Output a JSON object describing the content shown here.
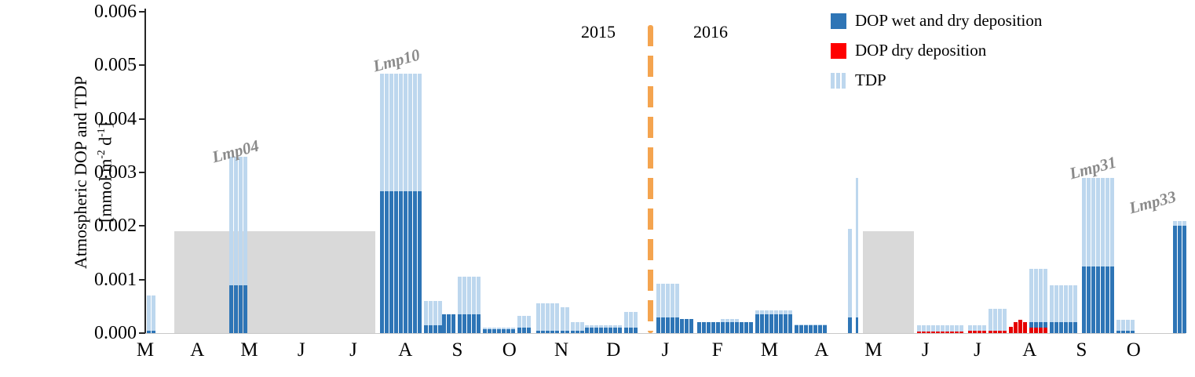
{
  "chart_data": {
    "type": "bar",
    "title": "",
    "xlabel": "",
    "ylabel_line1": "Atmospheric DOP and TDP",
    "ylabel_units_parts": [
      "[mmol m",
      "-2",
      " d",
      "-1",
      "]"
    ],
    "ylim": [
      0,
      0.006
    ],
    "y_ticks": [
      "0.000",
      "0.001",
      "0.002",
      "0.003",
      "0.004",
      "0.005",
      "0.006"
    ],
    "x_ticks": [
      "M",
      "A",
      "M",
      "J",
      "J",
      "A",
      "S",
      "O",
      "N",
      "D",
      "J",
      "F",
      "M",
      "A",
      "M",
      "J",
      "J",
      "A",
      "S",
      "O"
    ],
    "year_labels": [
      "2015",
      "2016"
    ],
    "year_divider_x": 0.4853,
    "legend": [
      {
        "label": "DOP wet and dry deposition",
        "color": "#2E75B6",
        "striped": false
      },
      {
        "label": "DOP dry deposition",
        "color": "#FF0000",
        "striped": false
      },
      {
        "label": "TDP",
        "color": "#BDD7EE",
        "striped": true
      }
    ],
    "colors": {
      "dop": "#2E75B6",
      "dry": "#E60000",
      "tdp": "#BDD7EE",
      "gap": "#D9D9D9",
      "divider": "#F4A44F"
    },
    "site_labels": [
      {
        "text": "Lmp04",
        "x": 0.087,
        "y": 0.0032
      },
      {
        "text": "Lmp10",
        "x": 0.2415,
        "y": 0.0049
      },
      {
        "text": "Lmp31",
        "x": 0.911,
        "y": 0.0029
      },
      {
        "text": "Lmp33",
        "x": 0.968,
        "y": 0.00225
      }
    ],
    "data_gaps": [
      {
        "x0": 0.028,
        "x1": 0.221,
        "value": 0.0019
      },
      {
        "x0": 0.69,
        "x1": 0.739,
        "value": 0.0019
      }
    ],
    "bar_clusters": [
      {
        "x": 0.0015,
        "n": 2,
        "tdp": 0.0007,
        "dop": 5e-05,
        "dry": 0
      },
      {
        "x": 0.0808,
        "n": 4,
        "tdp": 0.0033,
        "dop": 0.0009,
        "dry": 0
      },
      {
        "x": 0.2257,
        "n": 9,
        "tdp": 0.00485,
        "dop": 0.00265,
        "dry": 0
      },
      {
        "x": 0.2679,
        "n": 4,
        "tdp": 0.0006,
        "dop": 0.00015,
        "dry": 0
      },
      {
        "x": 0.2853,
        "n": 3,
        "tdp": 0.00035,
        "dop": 0.00035,
        "dry": 0
      },
      {
        "x": 0.3004,
        "n": 5,
        "tdp": 0.00105,
        "dop": 0.00035,
        "dry": 0
      },
      {
        "x": 0.3245,
        "n": 7,
        "tdp": 0.0001,
        "dop": 8e-05,
        "dry": 0
      },
      {
        "x": 0.3577,
        "n": 3,
        "tdp": 0.00032,
        "dop": 0.0001,
        "dry": 0
      },
      {
        "x": 0.3758,
        "n": 5,
        "tdp": 0.00055,
        "dop": 5e-05,
        "dry": 0
      },
      {
        "x": 0.3992,
        "n": 2,
        "tdp": 0.00048,
        "dop": 5e-05,
        "dry": 0
      },
      {
        "x": 0.4091,
        "n": 3,
        "tdp": 0.0002,
        "dop": 5e-05,
        "dry": 0
      },
      {
        "x": 0.4226,
        "n": 8,
        "tdp": 0.00015,
        "dop": 0.0001,
        "dry": 0
      },
      {
        "x": 0.4604,
        "n": 3,
        "tdp": 0.0004,
        "dop": 0.0001,
        "dry": 0
      },
      {
        "x": 0.4913,
        "n": 5,
        "tdp": 0.00092,
        "dop": 0.0003,
        "dry": 0
      },
      {
        "x": 0.514,
        "n": 3,
        "tdp": 0.00027,
        "dop": 0.00027,
        "dry": 0
      },
      {
        "x": 0.5306,
        "n": 5,
        "tdp": 0.0002,
        "dop": 0.0002,
        "dry": 0
      },
      {
        "x": 0.5532,
        "n": 4,
        "tdp": 0.00026,
        "dop": 0.0002,
        "dry": 0
      },
      {
        "x": 0.5713,
        "n": 3,
        "tdp": 0.0002,
        "dop": 0.0002,
        "dry": 0
      },
      {
        "x": 0.5864,
        "n": 8,
        "tdp": 0.00042,
        "dop": 0.00035,
        "dry": 0
      },
      {
        "x": 0.6242,
        "n": 7,
        "tdp": 0.00016,
        "dop": 0.00014,
        "dry": 0
      },
      {
        "x": 0.6755,
        "n": 1,
        "tdp": 0.00195,
        "dop": 0.0003,
        "dry": 0
      },
      {
        "x": 0.683,
        "n": 1,
        "w": 3,
        "tdp": 0.0029,
        "dop": 0.0003,
        "dry": 0
      },
      {
        "x": 0.7419,
        "n": 10,
        "tdp": 0.00015,
        "dop": 0,
        "dry": 3e-05
      },
      {
        "x": 0.7909,
        "n": 4,
        "tdp": 0.00015,
        "dop": 0,
        "dry": 4e-05
      },
      {
        "x": 0.8106,
        "n": 4,
        "tdp": 0.00045,
        "dop": 0,
        "dry": 4e-05
      },
      {
        "x": 0.8302,
        "n": 4,
        "tdp": 0,
        "dop": 0,
        "dry": [
          0.00012,
          0.0002,
          0.00025,
          0.0002
        ]
      },
      {
        "x": 0.8498,
        "n": 4,
        "tdp": 0.0012,
        "dop": 0.0002,
        "dry": 0.0001
      },
      {
        "x": 0.8694,
        "n": 6,
        "tdp": 0.0009,
        "dop": 0.0002,
        "dry": 0
      },
      {
        "x": 0.9004,
        "n": 7,
        "tdp": 0.0029,
        "dop": 0.00125,
        "dry": 0
      },
      {
        "x": 0.9336,
        "n": 4,
        "tdp": 0.00025,
        "dop": 5e-05,
        "dry": 0
      },
      {
        "x": 0.9879,
        "n": 3,
        "tdp": 0.0021,
        "dop": 0.002,
        "dry": 0
      }
    ]
  }
}
